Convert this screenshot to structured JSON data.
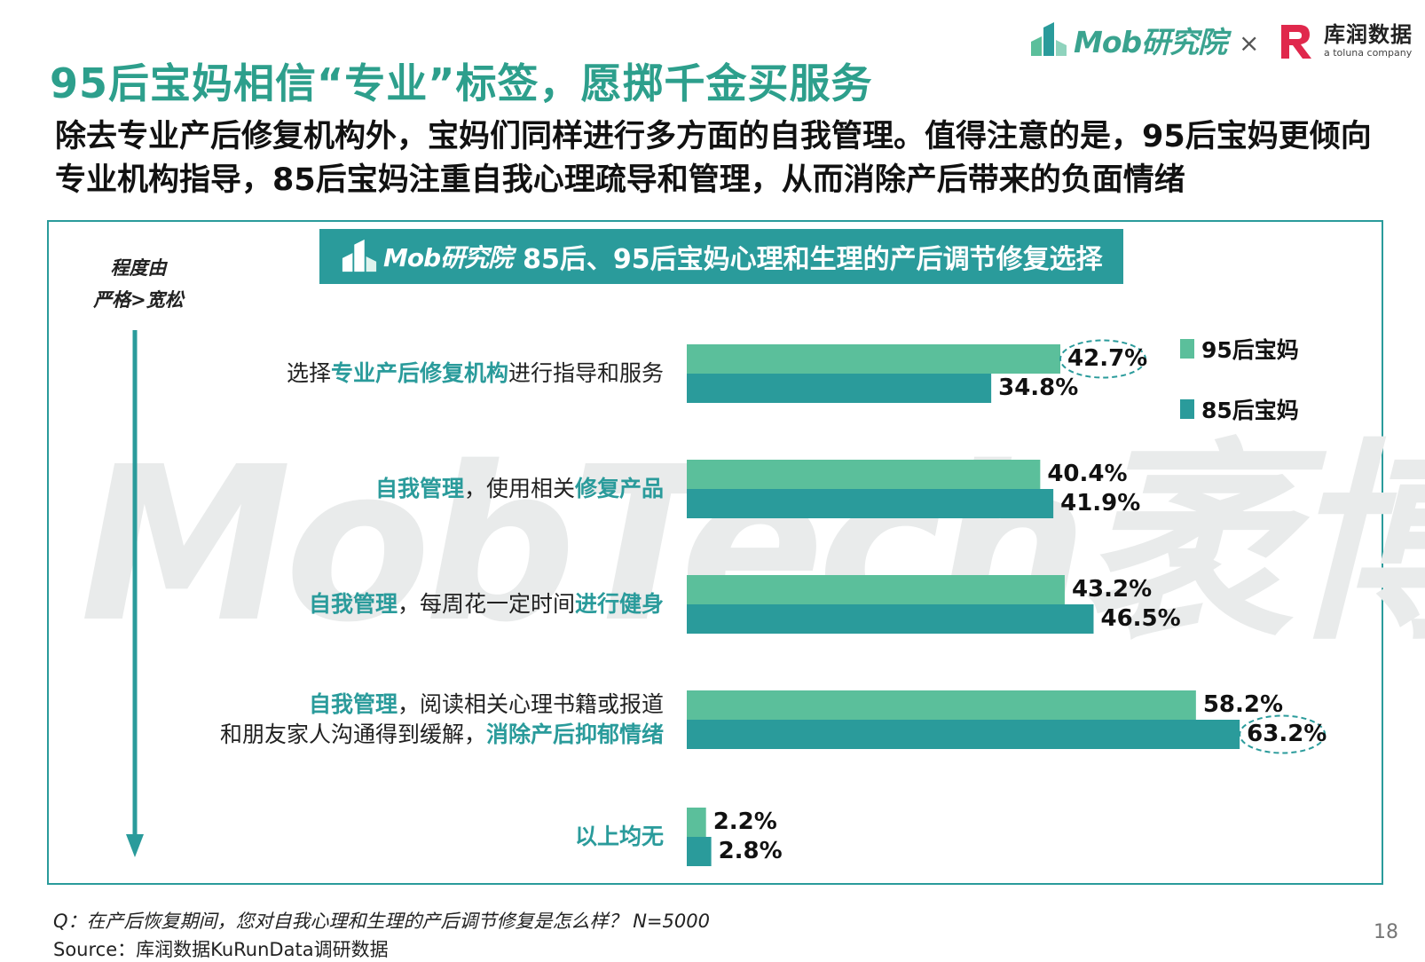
{
  "header": {
    "mob_logo_text": "Mob研究院",
    "times_sign": "×",
    "kurun_name": "库润数据",
    "kurun_sub": "a toluna company"
  },
  "page_title": "95后宝妈相信“专业”标签，愿掷千金买服务",
  "subtitle": "除去专业产后修复机构外，宝妈们同样进行多方面的自我管理。值得注意的是，95后宝妈更倾向专业机构指导，85后宝妈注重自我心理疏导和管理，从而消除产后带来的负面情绪",
  "banner": {
    "mob": "Mob研究院",
    "title": "85后、95后宝妈心理和生理的产后调节修复选择"
  },
  "scale_label": [
    "程度由",
    "严格>宽松"
  ],
  "watermark": "MobTech袤博",
  "colors": {
    "teal_light": "#5bbf9b",
    "teal_dark": "#2a9b9b",
    "frame": "#2a9b9b",
    "title": "#2d9f8c"
  },
  "chart_data": {
    "type": "bar",
    "orientation": "horizontal",
    "title": "85后、95后宝妈心理和生理的产后调节修复选择",
    "categories": [
      "选择专业产后修复机构进行指导和服务",
      "自我管理，使用相关修复产品",
      "自我管理，每周花一定时间进行健身",
      "自我管理，阅读相关心理书籍或报道和朋友家人沟通得到缓解，消除产后抑郁情绪",
      "以上均无"
    ],
    "category_parts": [
      [
        {
          "t": "选择",
          "hl": false
        },
        {
          "t": "专业产后修复机构",
          "hl": true
        },
        {
          "t": "进行指导和服务",
          "hl": false
        }
      ],
      [
        {
          "t": "自我管理",
          "hl": true
        },
        {
          "t": "，使用相关",
          "hl": false
        },
        {
          "t": "修复产品",
          "hl": true
        }
      ],
      [
        {
          "t": "自我管理",
          "hl": true
        },
        {
          "t": "，每周花一定时间",
          "hl": false
        },
        {
          "t": "进行健身",
          "hl": true
        }
      ],
      [
        {
          "t": "自我管理",
          "hl": true
        },
        {
          "t": "，阅读相关心理书籍或报道",
          "hl": false
        },
        {
          "t": "\n",
          "hl": false
        },
        {
          "t": "和朋友家人沟通得到缓解，",
          "hl": false
        },
        {
          "t": "消除产后抑郁情绪",
          "hl": true
        }
      ],
      [
        {
          "t": "以上均无",
          "hl": true
        }
      ]
    ],
    "series": [
      {
        "name": "95后宝妈",
        "values": [
          42.7,
          40.4,
          43.2,
          58.2,
          2.2
        ],
        "labels": [
          "42.7%",
          "40.4%",
          "43.2%",
          "58.2%",
          "2.2%"
        ],
        "color": "#5bbf9b"
      },
      {
        "name": "85后宝妈",
        "values": [
          34.8,
          41.9,
          46.5,
          63.2,
          2.8
        ],
        "labels": [
          "34.8%",
          "41.9%",
          "46.5%",
          "63.2%",
          "2.8%"
        ],
        "color": "#2a9b9b"
      }
    ],
    "xlim": [
      0,
      100
    ],
    "grid": false,
    "legend_position": "top-right",
    "highlighted": [
      {
        "series": 0,
        "index": 0
      },
      {
        "series": 1,
        "index": 3
      }
    ]
  },
  "footer": {
    "question": "Q：在产后恢复期间，您对自我心理和生理的产后调节修复是怎么样？ N=5000",
    "source": "Source：库润数据KuRunData调研数据",
    "page_number": "18"
  }
}
